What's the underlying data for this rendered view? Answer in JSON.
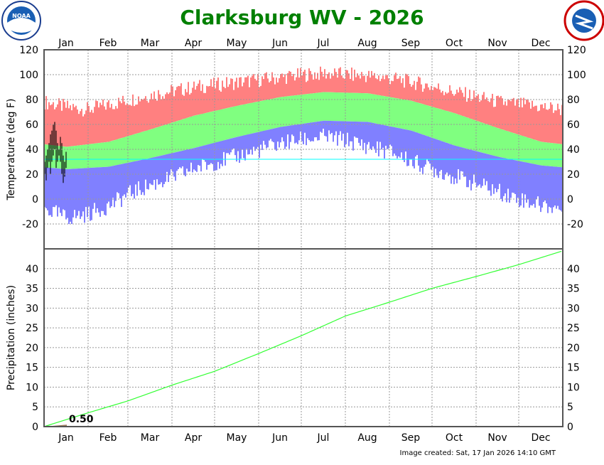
{
  "title": "Clarksburg WV - 2026",
  "footer": "Image created: Sat, 17 Jan 2026 14:10 GMT",
  "colors": {
    "title": "#008000",
    "record_high": "#ff8080",
    "normal_range": "#80ff80",
    "record_low": "#8080ff",
    "observed": "#000000",
    "freezing_line": "#00ffff",
    "precip_normal": "#33ff33",
    "precip_observed": "#a08060"
  },
  "logos": {
    "left": "NOAA",
    "right": "NATIONAL WEATHER SERVICE"
  },
  "chart_data": [
    {
      "type": "bar",
      "ylabel": "Temperature (deg F)",
      "ylim": [
        -40,
        120
      ],
      "yticks": [
        -20,
        0,
        20,
        40,
        60,
        80,
        100,
        120
      ],
      "months": [
        "Jan",
        "Feb",
        "Mar",
        "Apr",
        "May",
        "Jun",
        "Jul",
        "Aug",
        "Sep",
        "Oct",
        "Nov",
        "Dec"
      ],
      "grid": true,
      "freezing_line": 32,
      "record_high_semimonthly": [
        78,
        74,
        72,
        76,
        80,
        84,
        87,
        90,
        92,
        94,
        96,
        98,
        100,
        101,
        100,
        99,
        97,
        94,
        90,
        86,
        82,
        78,
        76,
        74,
        72
      ],
      "record_low_semimonthly": [
        -8,
        -15,
        -12,
        -5,
        5,
        12,
        18,
        25,
        30,
        35,
        40,
        45,
        48,
        50,
        47,
        42,
        38,
        30,
        24,
        18,
        12,
        6,
        0,
        -5,
        -8
      ],
      "normal_high_monthly": [
        42,
        46,
        56,
        67,
        75,
        82,
        86,
        85,
        79,
        69,
        57,
        46
      ],
      "normal_low_monthly": [
        24,
        26,
        33,
        41,
        50,
        58,
        63,
        62,
        55,
        43,
        34,
        27
      ],
      "observed_2026": {
        "dates": [
          "Jan 1",
          "Jan 2",
          "Jan 3",
          "Jan 4",
          "Jan 5",
          "Jan 6",
          "Jan 7",
          "Jan 8",
          "Jan 9",
          "Jan 10",
          "Jan 11",
          "Jan 12",
          "Jan 13",
          "Jan 14",
          "Jan 15",
          "Jan 16"
        ],
        "high": [
          30,
          35,
          40,
          45,
          52,
          55,
          60,
          62,
          55,
          45,
          40,
          50,
          45,
          35,
          30,
          38
        ],
        "low": [
          20,
          15,
          25,
          30,
          20,
          30,
          35,
          40,
          25,
          30,
          35,
          30,
          20,
          13,
          18,
          25
        ]
      }
    },
    {
      "type": "area",
      "ylabel": "Precipitation (inches)",
      "ylim": [
        0,
        45
      ],
      "yticks": [
        0,
        5,
        10,
        15,
        20,
        25,
        30,
        35,
        40
      ],
      "grid": true,
      "normal_cumulative_month_end": [
        3.5,
        6.5,
        10.5,
        14,
        18.5,
        23,
        28,
        31.5,
        35,
        38,
        41,
        44.5
      ],
      "observed_to_date": 0.5,
      "observed_through": "Jan 16",
      "observed_label": "0.50"
    }
  ]
}
